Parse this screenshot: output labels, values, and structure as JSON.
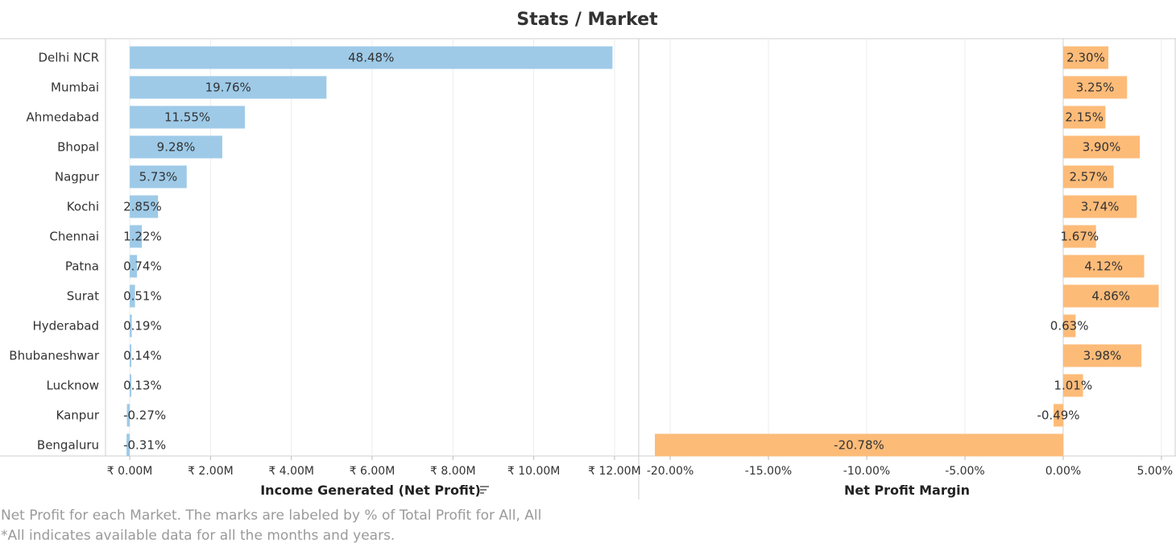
{
  "title": "Stats / Market",
  "captions": {
    "line1": "Net Profit for each Market.  The marks are labeled by % of Total Profit for All, All",
    "line2": "*All indicates available data for all the months and years."
  },
  "colors": {
    "income_bar": "#9ecae8",
    "margin_bar": "#fdbb78",
    "grid": "#ececec",
    "border": "#cfcfcf"
  },
  "chart_data": [
    {
      "type": "bar",
      "orientation": "horizontal",
      "xlabel": "Income Generated (Net Profit)",
      "sort_icon": "sort-descending-icon",
      "categories": [
        "Delhi NCR",
        "Mumbai",
        "Ahmedabad",
        "Bhopal",
        "Nagpur",
        "Kochi",
        "Chennai",
        "Patna",
        "Surat",
        "Hyderabad",
        "Bhubaneshwar",
        "Lucknow",
        "Kanpur",
        "Bengaluru"
      ],
      "values_millions": [
        11.95,
        4.87,
        2.85,
        2.29,
        1.41,
        0.7,
        0.3,
        0.18,
        0.13,
        0.05,
        0.03,
        0.03,
        -0.07,
        -0.08
      ],
      "labels": [
        "48.48%",
        "19.76%",
        "11.55%",
        "9.28%",
        "5.73%",
        "2.85%",
        "1.22%",
        "0.74%",
        "0.51%",
        "0.19%",
        "0.14%",
        "0.13%",
        "-0.27%",
        "-0.31%"
      ],
      "ticks": [
        0,
        2,
        4,
        6,
        8,
        10,
        12
      ],
      "tick_labels": [
        "₹ 0.00M",
        "₹ 2.00M",
        "₹ 4.00M",
        "₹ 6.00M",
        "₹ 8.00M",
        "₹ 10.00M",
        "₹ 12.00M"
      ],
      "xlim_millions": [
        -0.6,
        12.6
      ],
      "grid": true
    },
    {
      "type": "bar",
      "orientation": "horizontal",
      "xlabel": "Net Profit Margin",
      "categories": [
        "Delhi NCR",
        "Mumbai",
        "Ahmedabad",
        "Bhopal",
        "Nagpur",
        "Kochi",
        "Chennai",
        "Patna",
        "Surat",
        "Hyderabad",
        "Bhubaneshwar",
        "Lucknow",
        "Kanpur",
        "Bengaluru"
      ],
      "values_percent": [
        2.3,
        3.25,
        2.15,
        3.9,
        2.57,
        3.74,
        1.67,
        4.12,
        4.86,
        0.63,
        3.98,
        1.01,
        -0.49,
        -20.78
      ],
      "labels": [
        "2.30%",
        "3.25%",
        "2.15%",
        "3.90%",
        "2.57%",
        "3.74%",
        "1.67%",
        "4.12%",
        "4.86%",
        "0.63%",
        "3.98%",
        "1.01%",
        "-0.49%",
        "-20.78%"
      ],
      "ticks": [
        -20,
        -15,
        -10,
        -5,
        0,
        5
      ],
      "tick_labels": [
        "-20.00%",
        "-15.00%",
        "-10.00%",
        "-5.00%",
        "0.00%",
        "5.00%"
      ],
      "xlim_percent": [
        -21.6,
        5.7
      ],
      "grid": true
    }
  ]
}
